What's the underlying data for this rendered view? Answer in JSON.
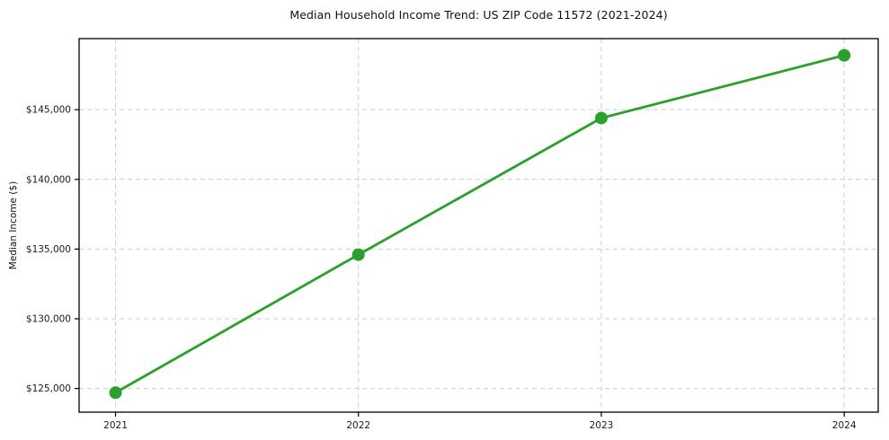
{
  "chart": {
    "title": "Median Household Income Trend: US ZIP Code 11572 (2021-2024)",
    "ylabel": "Median Income ($)"
  },
  "chart_data": {
    "type": "line",
    "title": "Median Household Income Trend: US ZIP Code 11572 (2021-2024)",
    "xlabel": "",
    "ylabel": "Median Income ($)",
    "x": [
      2021,
      2022,
      2023,
      2024
    ],
    "x_tick_labels": [
      "2021",
      "2022",
      "2023",
      "2024"
    ],
    "series": [
      {
        "name": "Median Household Income",
        "values": [
          124700,
          134600,
          144400,
          148900
        ]
      }
    ],
    "y_ticks": [
      125000,
      130000,
      135000,
      140000,
      145000
    ],
    "y_tick_labels": [
      "$125,000",
      "$130,000",
      "$135,000",
      "$140,000",
      "$145,000"
    ],
    "xlim": [
      2020.85,
      2024.14
    ],
    "ylim": [
      123300,
      150100
    ],
    "grid": true,
    "grid_style": "dashed",
    "legend": false,
    "colors": {
      "line": "#2ca02c",
      "marker": "#2ca02c",
      "grid": "#cccccc",
      "spine": "#000000",
      "tick_text": "#1a1a1a",
      "background": "#ffffff"
    },
    "marker": "o",
    "marker_radius": 7,
    "line_width": 2.8
  }
}
